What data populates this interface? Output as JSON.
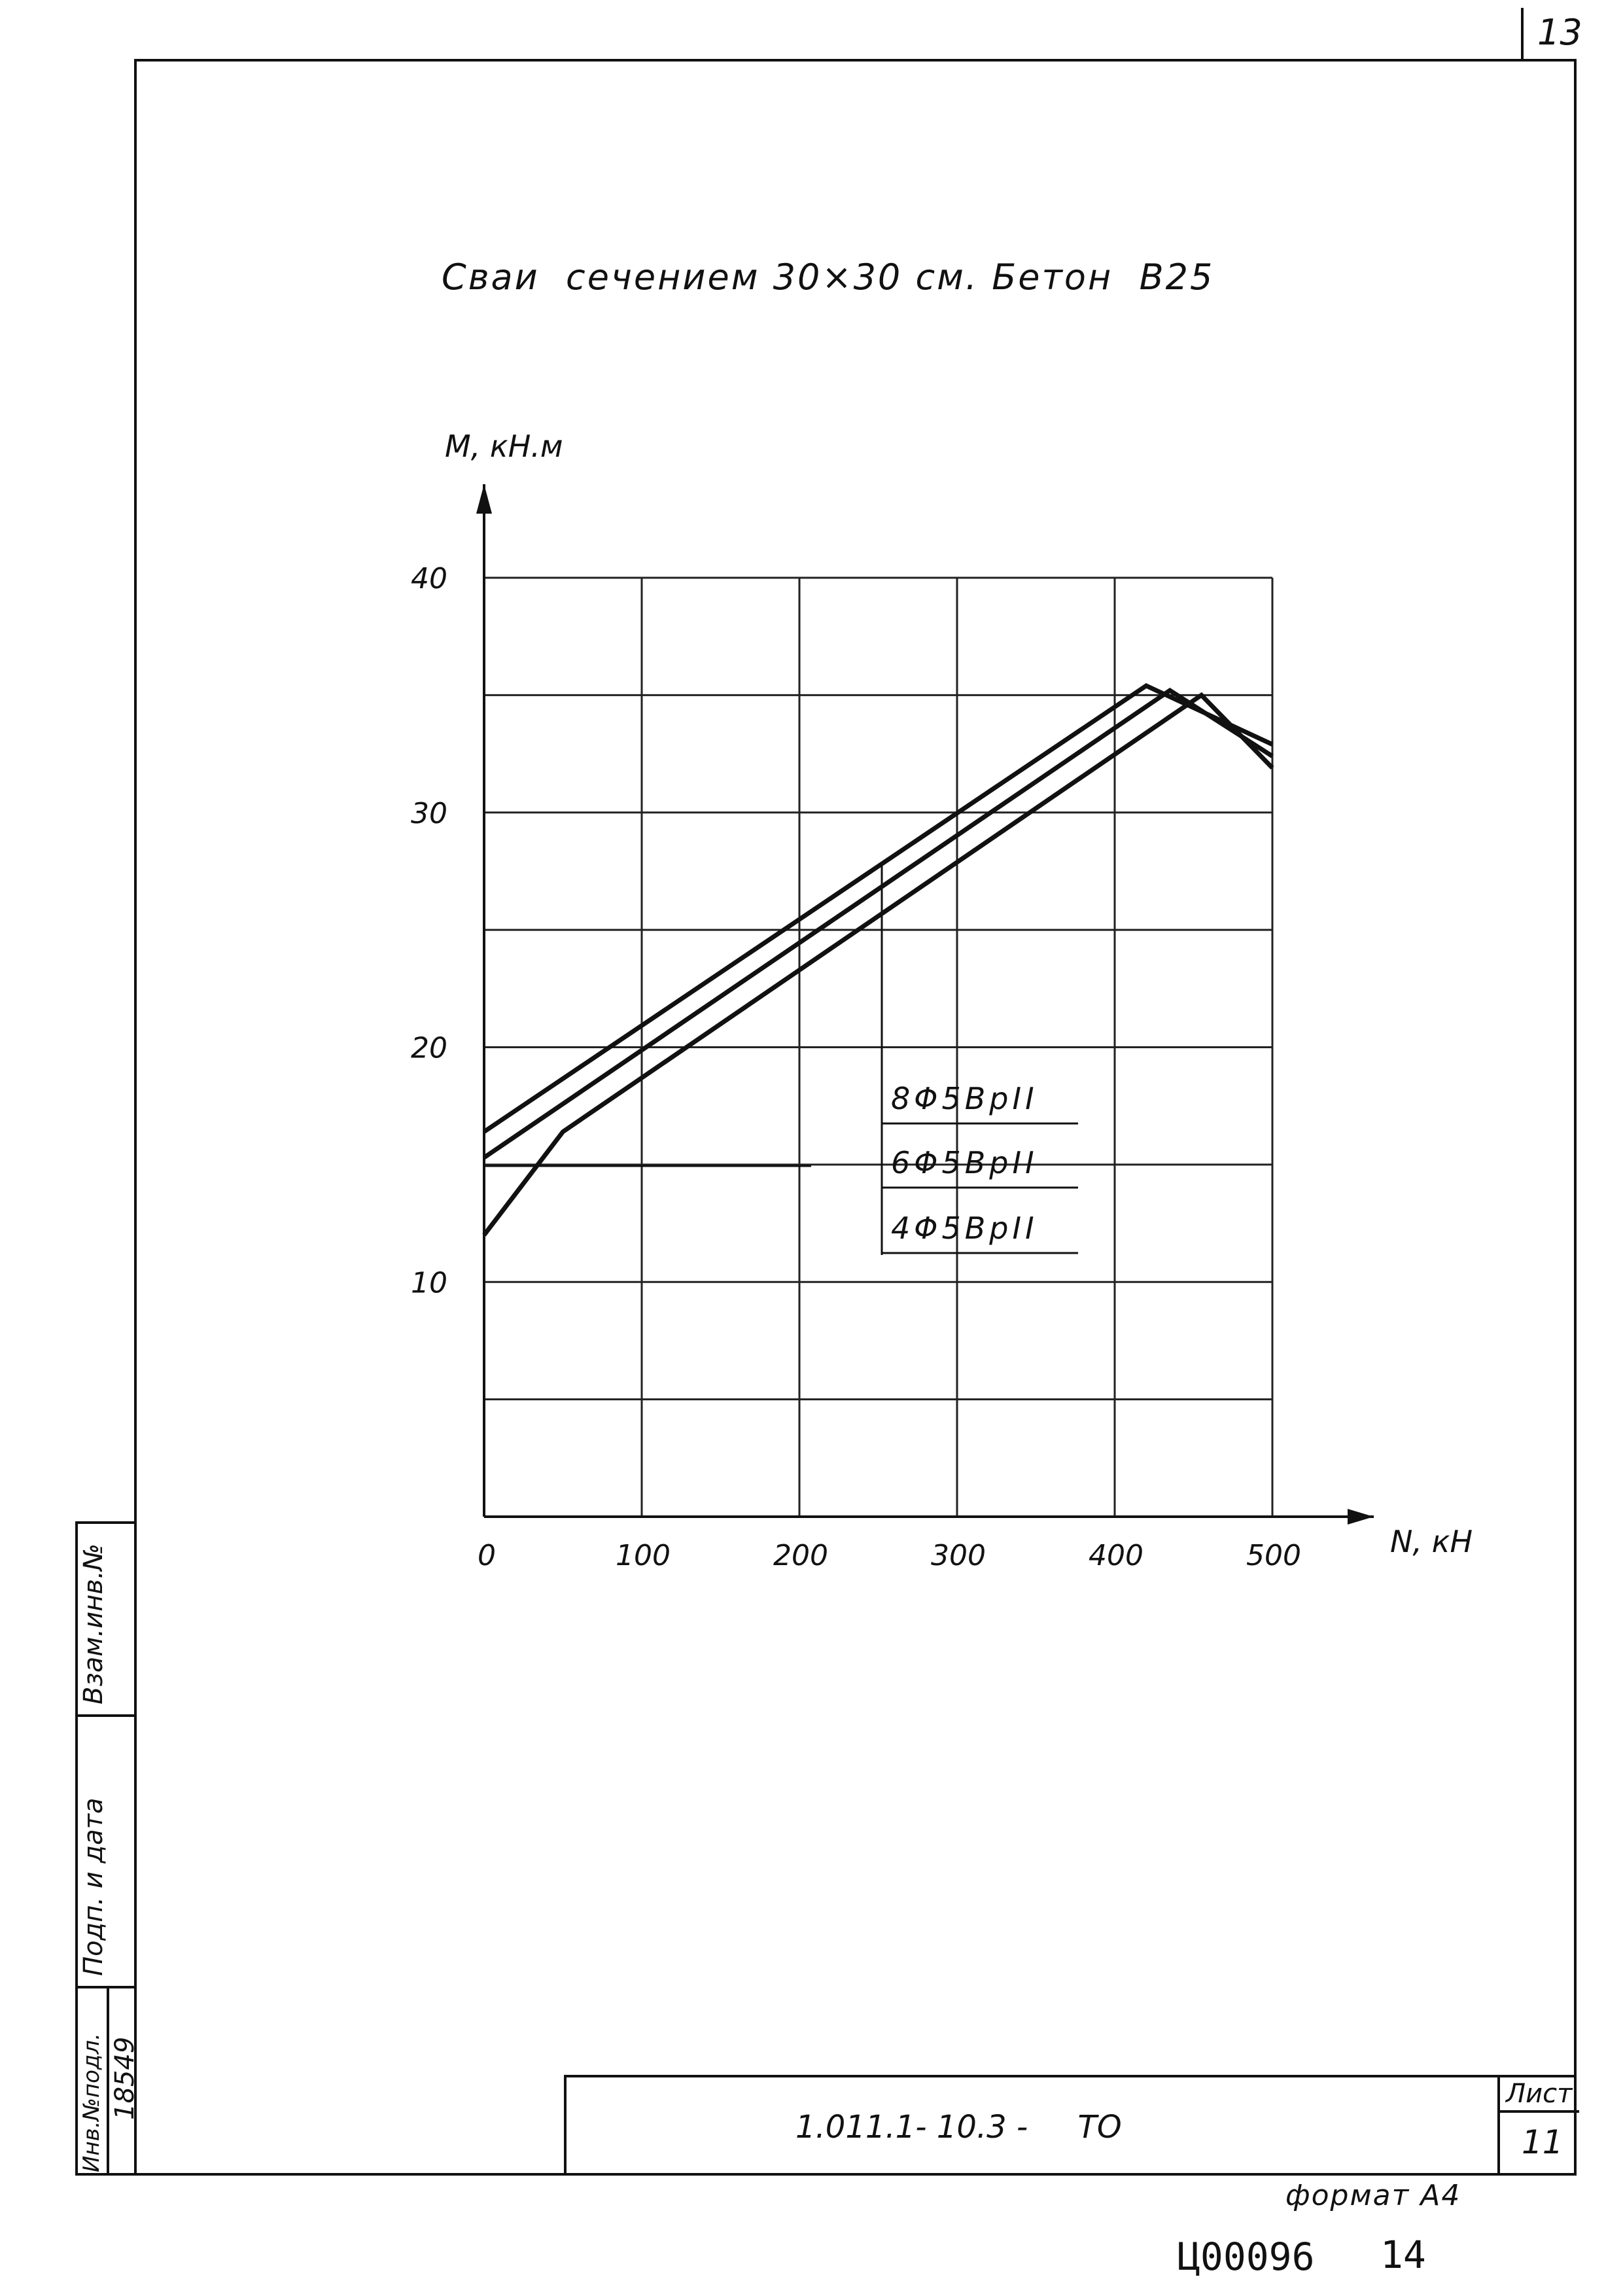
{
  "page": {
    "corner_number": "13",
    "title": "Сваи  сечением 30×30 см. Бетон  В25",
    "format_label": "формат А4",
    "archive_code": "Ц00096",
    "archive_sheet": "14"
  },
  "title_block": {
    "designation": "1.011.1- 10.3 -     ТО",
    "sheet_header": "Лист",
    "sheet_number": "11"
  },
  "side_stamp": {
    "inv_original_label": "Инв.№подл.",
    "inv_original_value": "18549",
    "sign_date_label": "Подп. и дата",
    "replace_inv_label": "Взам.инв.№"
  },
  "chart_data": {
    "type": "line",
    "title": "",
    "xlabel": "N, кН",
    "ylabel": "M, кН.м",
    "xlim": [
      0,
      500
    ],
    "ylim": [
      0,
      40
    ],
    "x_ticks": [
      "0",
      "100",
      "200",
      "300",
      "400",
      "500"
    ],
    "y_ticks": [
      "10",
      "20",
      "30",
      "40"
    ],
    "grid": true,
    "series": [
      {
        "name": "8Φ5ВрII",
        "x": [
          0,
          420,
          500
        ],
        "y": [
          16.4,
          35.4,
          32.9
        ]
      },
      {
        "name": "6Φ5ВрII",
        "x": [
          0,
          435,
          500
        ],
        "y": [
          15.3,
          35.2,
          32.4
        ]
      },
      {
        "name": "4Φ5ВрII",
        "x": [
          0,
          50,
          455,
          500
        ],
        "y": [
          12.0,
          16.4,
          35.0,
          31.9
        ]
      }
    ]
  }
}
